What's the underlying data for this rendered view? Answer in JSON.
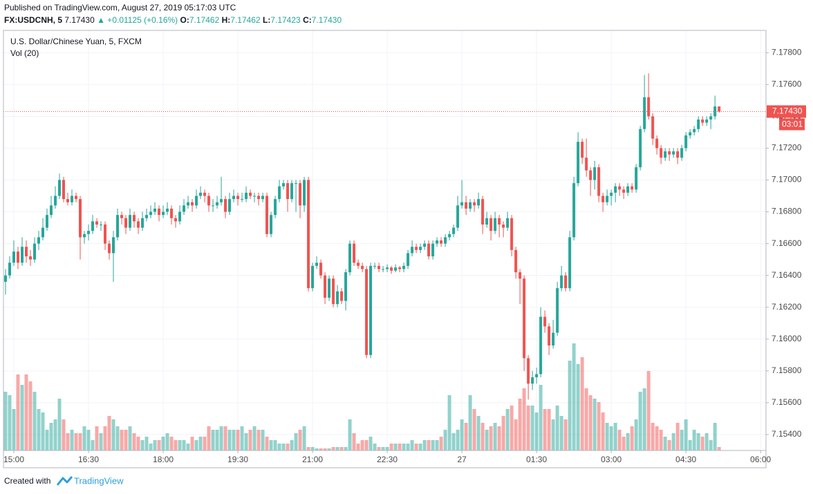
{
  "header": {
    "published": "Published on TradingView.com, August 27, 2019 05:17:03 UTC",
    "symbol": "FX:USDCNH, 5",
    "last": "7.17430",
    "change": "▲ +0.01125 (+0.16%)",
    "open_label": "O:",
    "open": "7.17462",
    "high_label": "H:",
    "high": "7.17462",
    "low_label": "L:",
    "low": "7.17423",
    "close_label": "C:",
    "close": "7.17430"
  },
  "footer": {
    "created": "Created with",
    "brand": "TradingView"
  },
  "chart_data": {
    "type": "candlestick",
    "title": "U.S. Dollar/Chinese Yuan, 5, FXCM",
    "volume_title": "Vol (20)",
    "up_color": "#26a69a",
    "down_color": "#ef5350",
    "grid": true,
    "ylim": [
      7.153,
      7.1794
    ],
    "yticks": [
      {
        "value": 7.154,
        "label": "7.15400"
      },
      {
        "value": 7.156,
        "label": "7.15600"
      },
      {
        "value": 7.158,
        "label": "7.15800"
      },
      {
        "value": 7.16,
        "label": "7.16000"
      },
      {
        "value": 7.162,
        "label": "7.16200"
      },
      {
        "value": 7.164,
        "label": "7.16400"
      },
      {
        "value": 7.166,
        "label": "7.16600"
      },
      {
        "value": 7.168,
        "label": "7.16800"
      },
      {
        "value": 7.17,
        "label": "7.17000"
      },
      {
        "value": 7.172,
        "label": "7.17200"
      },
      {
        "value": 7.174,
        "label": "7.17400"
      },
      {
        "value": 7.176,
        "label": "7.17600"
      },
      {
        "value": 7.178,
        "label": "7.17800"
      }
    ],
    "xlim": [
      -0.5,
      183.3
    ],
    "xticks": [
      {
        "value": 2,
        "label": "15:00"
      },
      {
        "value": 20,
        "label": "16:30"
      },
      {
        "value": 38,
        "label": "18:00"
      },
      {
        "value": 56,
        "label": "19:30"
      },
      {
        "value": 74,
        "label": "21:00"
      },
      {
        "value": 92,
        "label": "22:30"
      },
      {
        "value": 110,
        "label": "27"
      },
      {
        "value": 128,
        "label": "01:30"
      },
      {
        "value": 146,
        "label": "03:00"
      },
      {
        "value": 164,
        "label": "04:30"
      },
      {
        "value": 182,
        "label": "06:00"
      }
    ],
    "last_price": {
      "value": 7.1743,
      "label": "7.17430"
    },
    "countdown": "03:01",
    "ohlc": [
      [
        7.1636,
        7.1644,
        7.1628,
        7.164
      ],
      [
        7.164,
        7.1652,
        7.1638,
        7.1648
      ],
      [
        7.1648,
        7.1662,
        7.1646,
        7.1655
      ],
      [
        7.1655,
        7.1658,
        7.1644,
        7.1648
      ],
      [
        7.1648,
        7.1664,
        7.1646,
        7.1658
      ],
      [
        7.1658,
        7.1662,
        7.1648,
        7.1652
      ],
      [
        7.1652,
        7.1656,
        7.1646,
        7.165
      ],
      [
        7.165,
        7.1664,
        7.1648,
        7.166
      ],
      [
        7.166,
        7.1668,
        7.1656,
        7.1664
      ],
      [
        7.1664,
        7.1676,
        7.1662,
        7.167
      ],
      [
        7.167,
        7.1682,
        7.1668,
        7.1678
      ],
      [
        7.1678,
        7.169,
        7.1676,
        7.1684
      ],
      [
        7.1684,
        7.1696,
        7.1682,
        7.169
      ],
      [
        7.169,
        7.1704,
        7.1688,
        7.17
      ],
      [
        7.17,
        7.1702,
        7.1686,
        7.1688
      ],
      [
        7.1688,
        7.1692,
        7.1684,
        7.1686
      ],
      [
        7.1686,
        7.1694,
        7.1684,
        7.169
      ],
      [
        7.169,
        7.1692,
        7.1686,
        7.1688
      ],
      [
        7.1688,
        7.169,
        7.165,
        7.1664
      ],
      [
        7.1664,
        7.1668,
        7.166,
        7.1666
      ],
      [
        7.1666,
        7.1672,
        7.1662,
        7.1668
      ],
      [
        7.1668,
        7.1678,
        7.1666,
        7.1674
      ],
      [
        7.1674,
        7.1676,
        7.167,
        7.1672
      ],
      [
        7.1672,
        7.1674,
        7.1668,
        7.1672
      ],
      [
        7.1672,
        7.1674,
        7.1656,
        7.166
      ],
      [
        7.166,
        7.1662,
        7.165,
        7.1654
      ],
      [
        7.1654,
        7.1668,
        7.1636,
        7.1664
      ],
      [
        7.1664,
        7.1682,
        7.1662,
        7.1678
      ],
      [
        7.1678,
        7.168,
        7.1672,
        7.1676
      ],
      [
        7.1676,
        7.1678,
        7.1666,
        7.167
      ],
      [
        7.167,
        7.1682,
        7.1668,
        7.1678
      ],
      [
        7.1678,
        7.168,
        7.167,
        7.1674
      ],
      [
        7.1674,
        7.1676,
        7.1666,
        7.167
      ],
      [
        7.167,
        7.168,
        7.1668,
        7.1676
      ],
      [
        7.1676,
        7.1682,
        7.1674,
        7.1678
      ],
      [
        7.1678,
        7.1684,
        7.1676,
        7.168
      ],
      [
        7.168,
        7.1686,
        7.1678,
        7.1682
      ],
      [
        7.1682,
        7.1684,
        7.1674,
        7.1678
      ],
      [
        7.1678,
        7.1684,
        7.1676,
        7.168
      ],
      [
        7.168,
        7.1686,
        7.1678,
        7.1682
      ],
      [
        7.1682,
        7.1684,
        7.1672,
        7.1676
      ],
      [
        7.1676,
        7.1678,
        7.167,
        7.1674
      ],
      [
        7.1674,
        7.1684,
        7.1672,
        7.168
      ],
      [
        7.168,
        7.1688,
        7.1678,
        7.1684
      ],
      [
        7.1684,
        7.169,
        7.1682,
        7.1686
      ],
      [
        7.1686,
        7.1688,
        7.168,
        7.1684
      ],
      [
        7.1684,
        7.1694,
        7.1682,
        7.169
      ],
      [
        7.169,
        7.1696,
        7.1688,
        7.1692
      ],
      [
        7.1692,
        7.1694,
        7.1686,
        7.169
      ],
      [
        7.169,
        7.1692,
        7.168,
        7.1684
      ],
      [
        7.1684,
        7.1688,
        7.168,
        7.1684
      ],
      [
        7.1684,
        7.169,
        7.1682,
        7.1686
      ],
      [
        7.1686,
        7.1702,
        7.1684,
        7.1688
      ],
      [
        7.1688,
        7.169,
        7.1676,
        7.168
      ],
      [
        7.168,
        7.1692,
        7.1678,
        7.1688
      ],
      [
        7.1688,
        7.1694,
        7.1686,
        7.169
      ],
      [
        7.169,
        7.1692,
        7.1684,
        7.1688
      ],
      [
        7.1688,
        7.1692,
        7.1686,
        7.1688
      ],
      [
        7.1688,
        7.1696,
        7.1686,
        7.1692
      ],
      [
        7.1692,
        7.1694,
        7.1688,
        7.169
      ],
      [
        7.169,
        7.1692,
        7.1686,
        7.169
      ],
      [
        7.169,
        7.1692,
        7.1684,
        7.1688
      ],
      [
        7.1688,
        7.1692,
        7.1686,
        7.169
      ],
      [
        7.169,
        7.1692,
        7.1664,
        7.1666
      ],
      [
        7.1666,
        7.168,
        7.1664,
        7.1678
      ],
      [
        7.1678,
        7.169,
        7.1676,
        7.1688
      ],
      [
        7.1688,
        7.17,
        7.1686,
        7.1696
      ],
      [
        7.1696,
        7.17,
        7.1694,
        7.1698
      ],
      [
        7.1698,
        7.17,
        7.168,
        7.1688
      ],
      [
        7.1688,
        7.17,
        7.1686,
        7.1698
      ],
      [
        7.1698,
        7.17,
        7.168,
        7.1698
      ],
      [
        7.1698,
        7.17,
        7.1676,
        7.1684
      ],
      [
        7.1684,
        7.1702,
        7.168,
        7.17
      ],
      [
        7.17,
        7.1702,
        7.163,
        7.1632
      ],
      [
        7.1632,
        7.1648,
        7.163,
        7.1646
      ],
      [
        7.1646,
        7.1652,
        7.1644,
        7.1648
      ],
      [
        7.1648,
        7.165,
        7.1638,
        7.164
      ],
      [
        7.164,
        7.1642,
        7.1622,
        7.1626
      ],
      [
        7.1626,
        7.164,
        7.1624,
        7.1638
      ],
      [
        7.1638,
        7.164,
        7.162,
        7.1622
      ],
      [
        7.1622,
        7.1634,
        7.162,
        7.163
      ],
      [
        7.163,
        7.1632,
        7.1622,
        7.1624
      ],
      [
        7.1624,
        7.1644,
        7.1618,
        7.1642
      ],
      [
        7.1642,
        7.1662,
        7.164,
        7.166
      ],
      [
        7.166,
        7.1662,
        7.1646,
        7.1648
      ],
      [
        7.1648,
        7.165,
        7.1644,
        7.1646
      ],
      [
        7.1646,
        7.1648,
        7.1642,
        7.1644
      ],
      [
        7.1644,
        7.1646,
        7.1588,
        7.159
      ],
      [
        7.159,
        7.1648,
        7.1588,
        7.1646
      ],
      [
        7.1646,
        7.1648,
        7.1644,
        7.1646
      ],
      [
        7.1646,
        7.1648,
        7.1642,
        7.1644
      ],
      [
        7.1644,
        7.1646,
        7.1642,
        7.1644
      ],
      [
        7.1644,
        7.1647,
        7.1642,
        7.1645
      ],
      [
        7.1645,
        7.1646,
        7.1641,
        7.1643
      ],
      [
        7.1643,
        7.1647,
        7.1642,
        7.1645
      ],
      [
        7.1645,
        7.1646,
        7.1642,
        7.1644
      ],
      [
        7.1644,
        7.1648,
        7.1642,
        7.1646
      ],
      [
        7.1646,
        7.1656,
        7.1644,
        7.1654
      ],
      [
        7.1654,
        7.1662,
        7.1652,
        7.1658
      ],
      [
        7.1658,
        7.166,
        7.1654,
        7.1656
      ],
      [
        7.1656,
        7.166,
        7.1654,
        7.1658
      ],
      [
        7.1658,
        7.1662,
        7.1656,
        7.166
      ],
      [
        7.166,
        7.1662,
        7.165,
        7.1652
      ],
      [
        7.1652,
        7.1662,
        7.165,
        7.166
      ],
      [
        7.166,
        7.1664,
        7.1658,
        7.1662
      ],
      [
        7.1662,
        7.1664,
        7.1658,
        7.166
      ],
      [
        7.166,
        7.1666,
        7.1658,
        7.1664
      ],
      [
        7.1664,
        7.1668,
        7.1662,
        7.1666
      ],
      [
        7.1666,
        7.1672,
        7.1664,
        7.167
      ],
      [
        7.167,
        7.169,
        7.1668,
        7.1684
      ],
      [
        7.1684,
        7.17,
        7.1682,
        7.1686
      ],
      [
        7.1686,
        7.169,
        7.1678,
        7.1682
      ],
      [
        7.1682,
        7.1688,
        7.168,
        7.1686
      ],
      [
        7.1686,
        7.1688,
        7.168,
        7.1684
      ],
      [
        7.1684,
        7.1692,
        7.1682,
        7.1688
      ],
      [
        7.1688,
        7.169,
        7.1666,
        7.1672
      ],
      [
        7.1672,
        7.168,
        7.167,
        7.1676
      ],
      [
        7.1676,
        7.1678,
        7.1662,
        7.1668
      ],
      [
        7.1668,
        7.168,
        7.1666,
        7.1676
      ],
      [
        7.1676,
        7.1678,
        7.1664,
        7.1672
      ],
      [
        7.1672,
        7.1674,
        7.1664,
        7.167
      ],
      [
        7.167,
        7.168,
        7.1668,
        7.1676
      ],
      [
        7.1676,
        7.1678,
        7.1652,
        7.1656
      ],
      [
        7.1656,
        7.1658,
        7.1638,
        7.1642
      ],
      [
        7.1642,
        7.1644,
        7.1622,
        7.1638
      ],
      [
        7.1638,
        7.164,
        7.158,
        7.1588
      ],
      [
        7.1588,
        7.159,
        7.1562,
        7.1572
      ],
      [
        7.1572,
        7.158,
        7.1568,
        7.1576
      ],
      [
        7.1576,
        7.1582,
        7.1572,
        7.1578
      ],
      [
        7.1578,
        7.162,
        7.1576,
        7.1614
      ],
      [
        7.1614,
        7.1618,
        7.1604,
        7.1608
      ],
      [
        7.1608,
        7.161,
        7.159,
        7.1596
      ],
      [
        7.1596,
        7.1612,
        7.1594,
        7.1604
      ],
      [
        7.1604,
        7.1636,
        7.1602,
        7.1632
      ],
      [
        7.1632,
        7.1646,
        7.163,
        7.164
      ],
      [
        7.164,
        7.1642,
        7.163,
        7.1632
      ],
      [
        7.1632,
        7.1668,
        7.163,
        7.1664
      ],
      [
        7.1664,
        7.1702,
        7.1662,
        7.1698
      ],
      [
        7.1698,
        7.173,
        7.1696,
        7.1724
      ],
      [
        7.1724,
        7.1726,
        7.171,
        7.1714
      ],
      [
        7.1714,
        7.1726,
        7.1702,
        7.1706
      ],
      [
        7.1706,
        7.1708,
        7.169,
        7.17
      ],
      [
        7.17,
        7.1712,
        7.1694,
        7.1708
      ],
      [
        7.1708,
        7.171,
        7.1686,
        7.169
      ],
      [
        7.169,
        7.1692,
        7.168,
        7.1686
      ],
      [
        7.1686,
        7.1694,
        7.1684,
        7.169
      ],
      [
        7.169,
        7.1694,
        7.1684,
        7.1692
      ],
      [
        7.1692,
        7.1698,
        7.1686,
        7.1696
      ],
      [
        7.1696,
        7.1698,
        7.169,
        7.1694
      ],
      [
        7.1694,
        7.1696,
        7.1688,
        7.1692
      ],
      [
        7.1692,
        7.1698,
        7.169,
        7.1696
      ],
      [
        7.1696,
        7.1698,
        7.1692,
        7.1694
      ],
      [
        7.1694,
        7.171,
        7.1692,
        7.1708
      ],
      [
        7.1708,
        7.1734,
        7.1706,
        7.1732
      ],
      [
        7.1732,
        7.1766,
        7.173,
        7.1752
      ],
      [
        7.1752,
        7.1767,
        7.1738,
        7.174
      ],
      [
        7.174,
        7.1742,
        7.1722,
        7.1726
      ],
      [
        7.1726,
        7.1728,
        7.1716,
        7.172
      ],
      [
        7.172,
        7.1722,
        7.171,
        7.1714
      ],
      [
        7.1714,
        7.172,
        7.1712,
        7.1718
      ],
      [
        7.1718,
        7.172,
        7.1712,
        7.1716
      ],
      [
        7.1716,
        7.172,
        7.1714,
        7.1718
      ],
      [
        7.1718,
        7.172,
        7.171,
        7.1714
      ],
      [
        7.1714,
        7.1722,
        7.1712,
        7.172
      ],
      [
        7.172,
        7.173,
        7.1718,
        7.1728
      ],
      [
        7.1728,
        7.1732,
        7.1726,
        7.173
      ],
      [
        7.173,
        7.1734,
        7.1728,
        7.1732
      ],
      [
        7.1732,
        7.174,
        7.173,
        7.1738
      ],
      [
        7.1738,
        7.174,
        7.1734,
        7.1736
      ],
      [
        7.1736,
        7.174,
        7.1734,
        7.1738
      ],
      [
        7.1738,
        7.1742,
        7.1732,
        7.174
      ],
      [
        7.174,
        7.1753,
        7.1738,
        7.17462
      ],
      [
        7.17462,
        7.17462,
        7.17423,
        7.1743
      ]
    ],
    "volume": [
      85,
      80,
      60,
      110,
      95,
      110,
      100,
      85,
      60,
      55,
      30,
      40,
      45,
      75,
      45,
      25,
      30,
      25,
      25,
      35,
      30,
      15,
      35,
      25,
      35,
      50,
      45,
      35,
      30,
      30,
      35,
      25,
      20,
      15,
      20,
      10,
      15,
      15,
      20,
      25,
      20,
      15,
      15,
      15,
      10,
      20,
      15,
      20,
      20,
      35,
      30,
      30,
      35,
      35,
      30,
      30,
      30,
      35,
      25,
      30,
      35,
      30,
      30,
      20,
      15,
      15,
      10,
      10,
      10,
      15,
      25,
      30,
      35,
      5,
      5,
      3,
      3,
      3,
      3,
      5,
      5,
      5,
      5,
      45,
      25,
      10,
      15,
      15,
      20,
      10,
      5,
      5,
      5,
      10,
      10,
      10,
      10,
      10,
      15,
      10,
      10,
      15,
      15,
      15,
      15,
      20,
      30,
      80,
      25,
      30,
      45,
      40,
      80,
      60,
      50,
      40,
      30,
      35,
      40,
      35,
      50,
      60,
      65,
      45,
      75,
      90,
      65,
      65,
      55,
      95,
      60,
      60,
      45,
      65,
      50,
      45,
      130,
      155,
      125,
      135,
      90,
      80,
      75,
      70,
      55,
      40,
      35,
      40,
      30,
      20,
      25,
      35,
      45,
      85,
      90,
      115,
      40,
      35,
      30,
      20,
      15,
      25,
      40,
      30,
      45,
      15,
      30,
      25,
      20,
      25,
      15,
      40,
      5
    ]
  }
}
